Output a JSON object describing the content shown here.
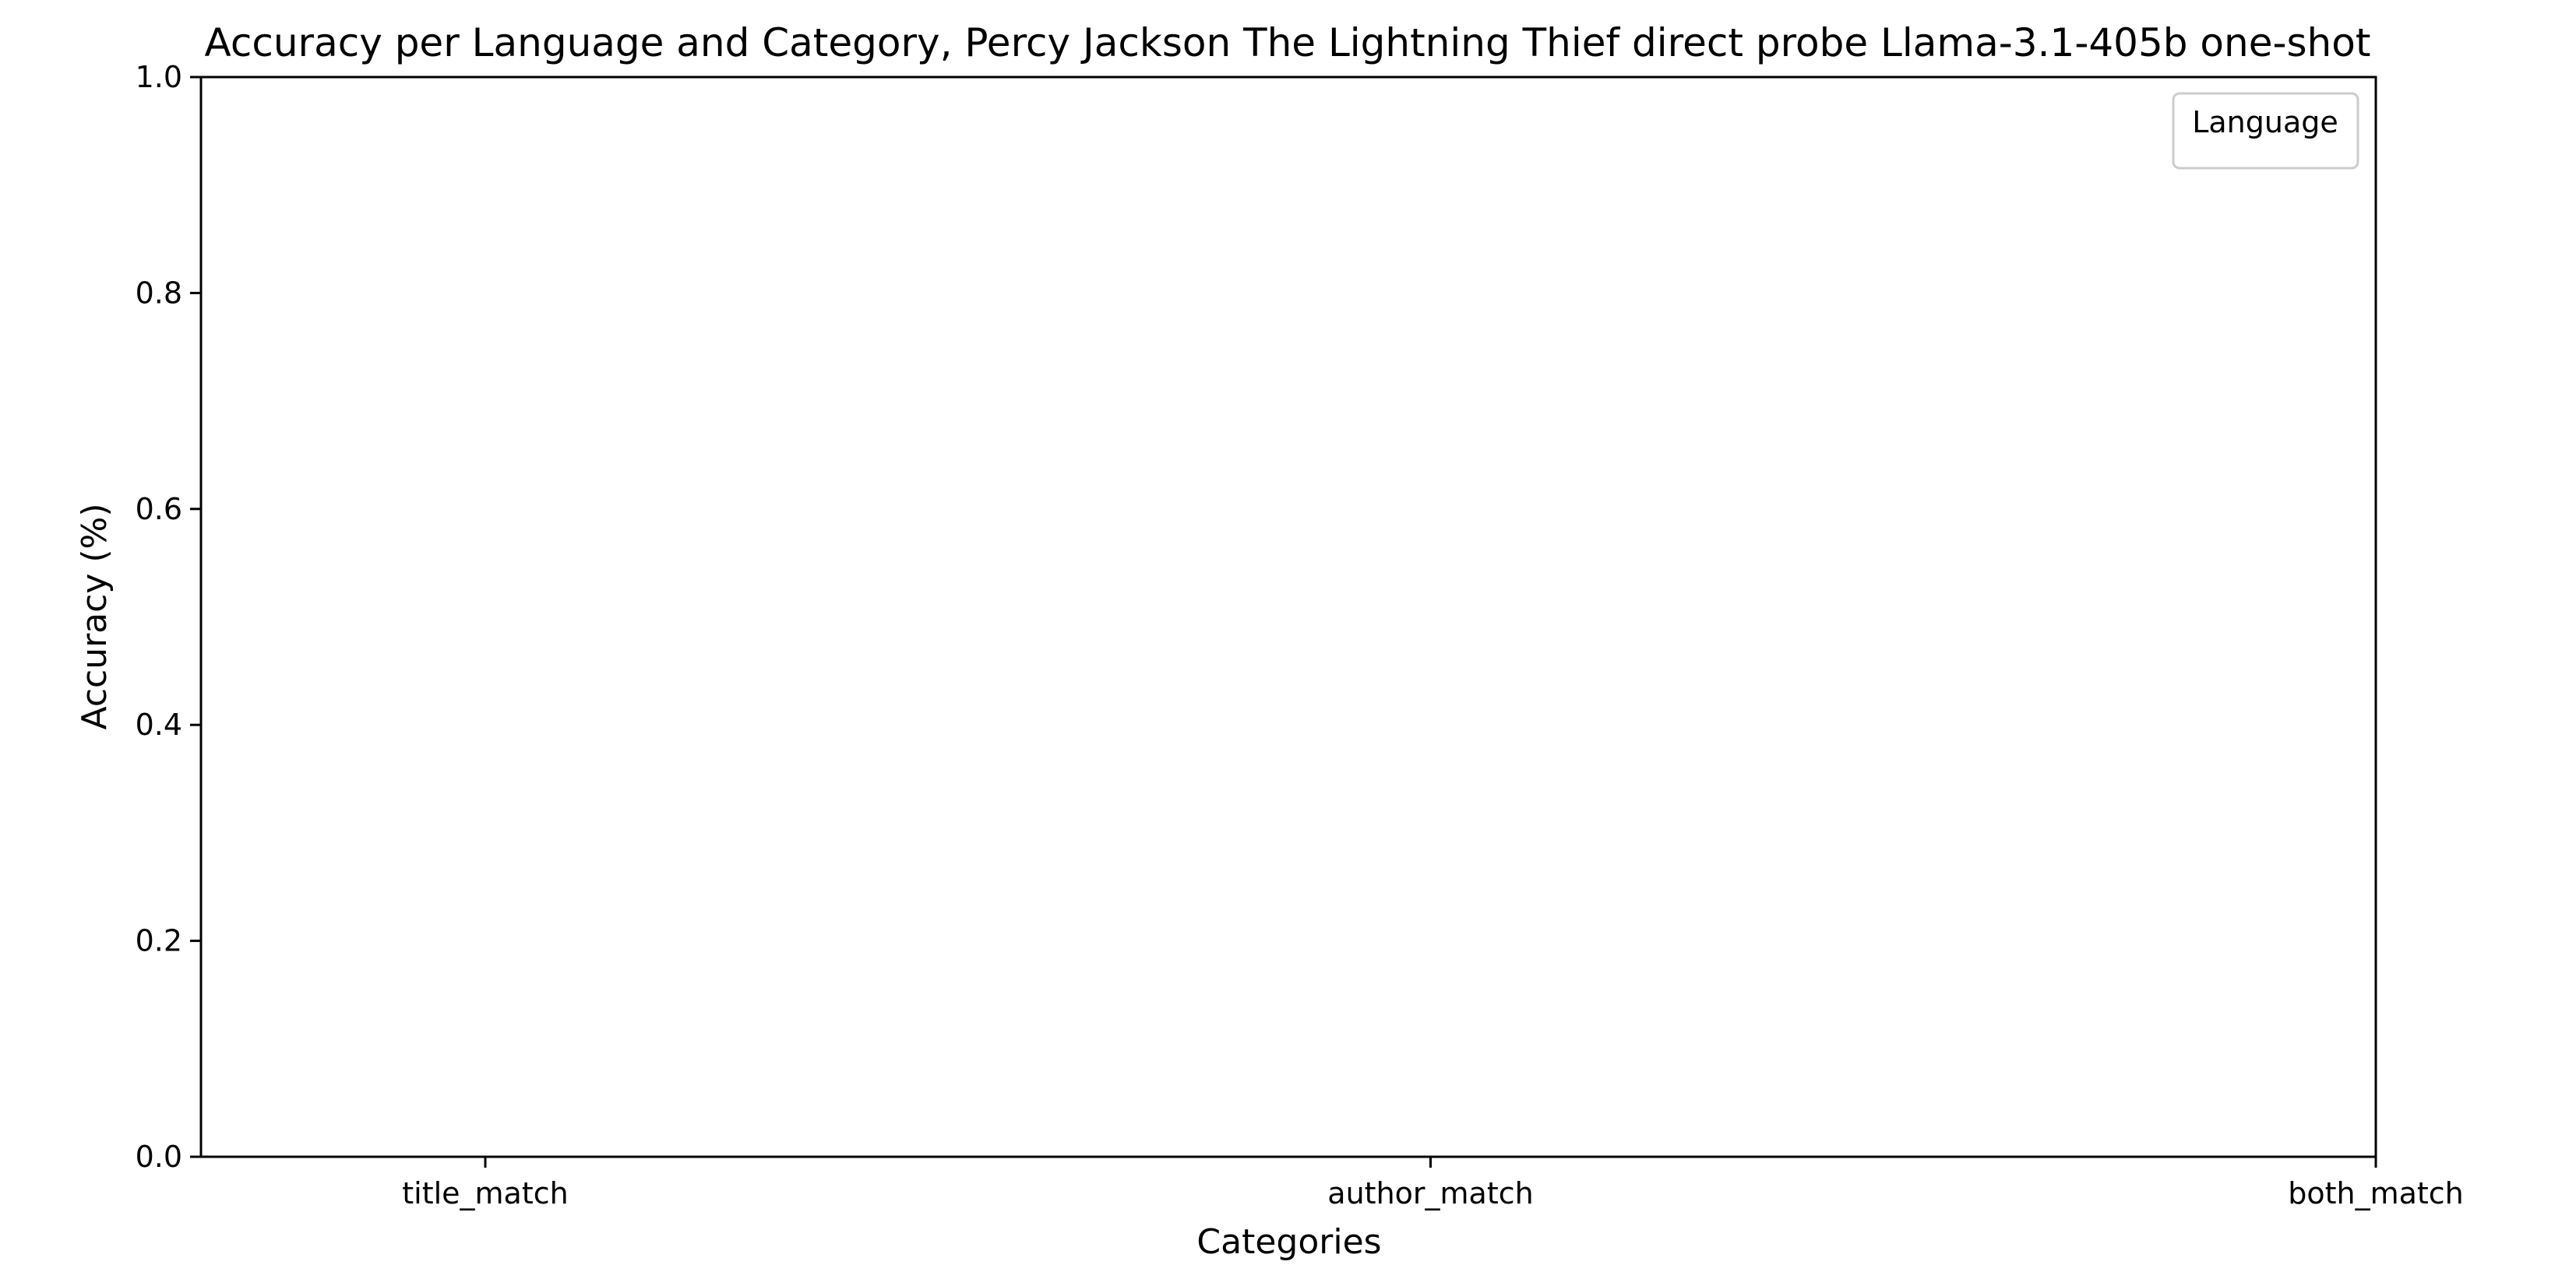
{
  "chart_data": {
    "type": "bar",
    "title": "Accuracy per Language and Category, Percy Jackson The Lightning Thief direct probe Llama-3.1-405b one-shot",
    "xlabel": "Categories",
    "ylabel": "Accuracy (%)",
    "categories": [
      "title_match",
      "author_match",
      "both_match"
    ],
    "series": [],
    "ylim": [
      0.0,
      1.0
    ],
    "yticks": [
      "0.0",
      "0.2",
      "0.4",
      "0.6",
      "0.8",
      "1.0"
    ],
    "legend": {
      "title": "Language",
      "placement": "top-right"
    },
    "grid": false
  }
}
